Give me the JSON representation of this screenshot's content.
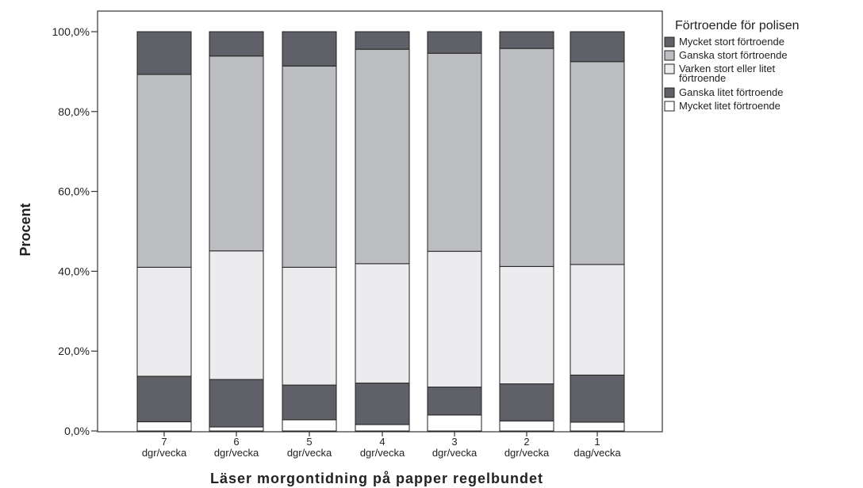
{
  "chart_data": {
    "type": "bar",
    "stacked": true,
    "title": "",
    "xlabel": "Läser morgontidning på papper regelbundet",
    "ylabel": "Procent",
    "ylim": [
      0,
      100
    ],
    "yticks": [
      "0,0%",
      "20,0%",
      "40,0%",
      "60,0%",
      "80,0%",
      "100,0%"
    ],
    "categories": [
      [
        "7",
        "dgr/vecka"
      ],
      [
        "6",
        "dgr/vecka"
      ],
      [
        "5",
        "dgr/vecka"
      ],
      [
        "4",
        "dgr/vecka"
      ],
      [
        "3",
        "dgr/vecka"
      ],
      [
        "2",
        "dgr/vecka"
      ],
      [
        "1",
        "dag/vecka"
      ]
    ],
    "legend": {
      "title": "Förtroende för polisen",
      "position": "right",
      "items": [
        [
          "Mycket stort förtroende"
        ],
        [
          "Ganska stort förtroende"
        ],
        [
          "Varken stort eller litet",
          "förtroende"
        ],
        [
          "Ganska litet förtroende"
        ],
        [
          "Mycket litet förtroende"
        ]
      ]
    },
    "series": [
      {
        "name": "Mycket litet förtroende",
        "color": "#ffffff",
        "values": [
          2.3,
          1.0,
          2.8,
          1.6,
          4.0,
          2.5,
          2.2
        ]
      },
      {
        "name": "Ganska litet förtroende",
        "color": "#5f6068",
        "values": [
          11.4,
          11.9,
          8.7,
          10.4,
          7.0,
          9.3,
          11.8
        ]
      },
      {
        "name": "Varken stort eller litet förtroende",
        "color": "#ececee",
        "values": [
          27.3,
          32.2,
          29.5,
          29.9,
          34.0,
          29.4,
          27.7
        ]
      },
      {
        "name": "Ganska stort förtroende",
        "color": "#bcbdc1",
        "values": [
          48.3,
          48.8,
          50.4,
          53.7,
          49.6,
          54.6,
          50.8
        ]
      },
      {
        "name": "Mycket stort förtroende",
        "color": "#5f6068",
        "values": [
          10.7,
          6.1,
          8.6,
          4.4,
          5.4,
          4.2,
          7.5
        ]
      }
    ],
    "grid": false
  }
}
